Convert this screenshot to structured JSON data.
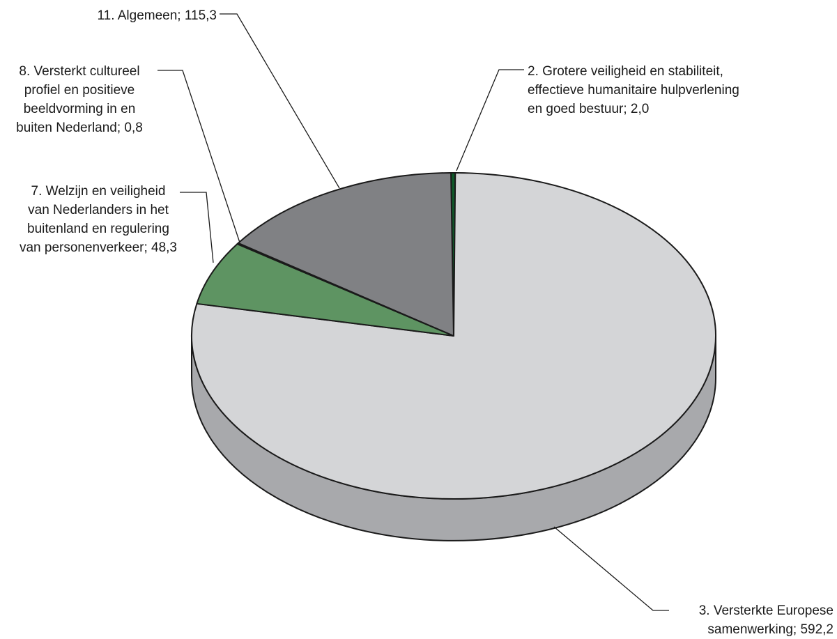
{
  "chart_data": {
    "type": "pie",
    "title": "",
    "slices": [
      {
        "name": "2. Grotere veiligheid en stabiliteit, effectieve humanitaire hulpverlening en goed bestuur",
        "value": 2.0,
        "value_label": "2,0",
        "color": "#0f5a2a",
        "label_lines": [
          "2. Grotere veiligheid en stabiliteit,",
          "effectieve humanitaire hulpverlening",
          "en goed bestuur; 2,0"
        ]
      },
      {
        "name": "3. Versterkte Europese samenwerking",
        "value": 592.2,
        "value_label": "592,2",
        "color": "#d4d5d7",
        "label_lines": [
          "3. Versterkte Europese",
          "samenwerking; 592,2"
        ]
      },
      {
        "name": "7. Welzijn en veiligheid van Nederlanders in het buitenland en regulering van personenverkeer",
        "value": 48.3,
        "value_label": "48,3",
        "color": "#5e9462",
        "label_lines": [
          "7. Welzijn en veiligheid",
          "van Nederlanders in het",
          "buitenland en regulering",
          "van personenverkeer; 48,3"
        ]
      },
      {
        "name": "8. Versterkt cultureel profiel en positieve beeldvorming in en buiten Nederland",
        "value": 0.8,
        "value_label": "0,8",
        "color": "#2b2b2b",
        "label_lines": [
          "8. Versterkt cultureel",
          "profiel en positieve",
          "beeldvorming in en",
          "buiten Nederland; 0,8"
        ]
      },
      {
        "name": "11. Algemeen",
        "value": 115.3,
        "value_label": "115,3",
        "color": "#808184",
        "label_lines": [
          "11. Algemeen; 115,3"
        ]
      }
    ],
    "style": "3d-pie",
    "side_color": "#a8a9ac",
    "outline_color": "#1a1a1a",
    "leader_color": "#1a1a1a"
  }
}
